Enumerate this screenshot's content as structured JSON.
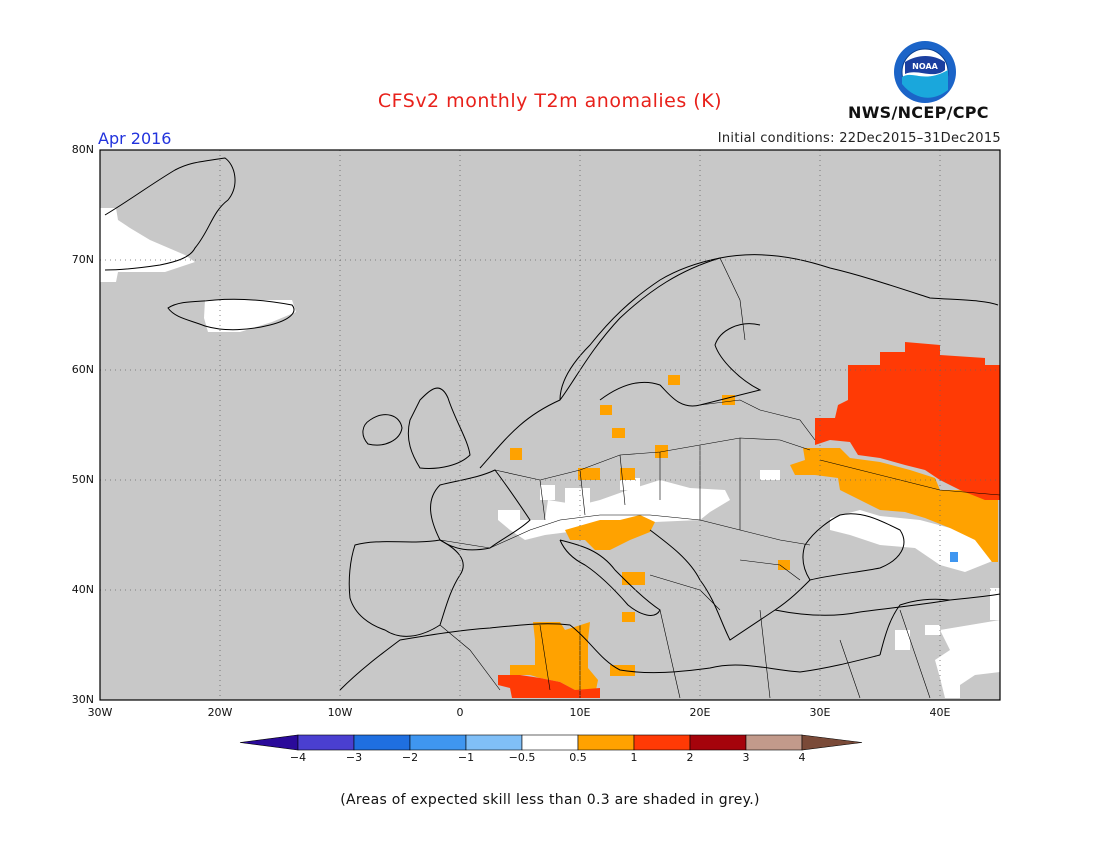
{
  "title": "CFSv2 monthly T2m anomalies (K)",
  "period": "Apr 2016",
  "initial_conditions": "Initial conditions: 22Dec2015–31Dec2015",
  "agency": "NWS/NCEP/CPC",
  "logo_text": "NOAA",
  "footnote": "(Areas of expected skill less than 0.3 are shaded in grey.)",
  "map": {
    "lon_range": [
      -30,
      45
    ],
    "lat_range": [
      30,
      80
    ],
    "background_color": "#c8c8c8",
    "lat_ticks": [
      "80N",
      "70N",
      "60N",
      "50N",
      "40N",
      "30N"
    ],
    "lon_ticks": [
      "30W",
      "20W",
      "10W",
      "0",
      "10E",
      "20E",
      "30E",
      "40E"
    ],
    "gridlines": "dotted"
  },
  "colorbar": {
    "labels": [
      "−4",
      "−3",
      "−2",
      "−1",
      "−0.5",
      "0.5",
      "1",
      "2",
      "3",
      "4"
    ],
    "colors": [
      "#2a0a9a",
      "#4a3fd0",
      "#1f6fe0",
      "#3f96f0",
      "#80bff7",
      "#ffffff",
      "#ffa200",
      "#ff3a05",
      "#a5030b",
      "#c29a8b",
      "#7a4a38"
    ]
  }
}
